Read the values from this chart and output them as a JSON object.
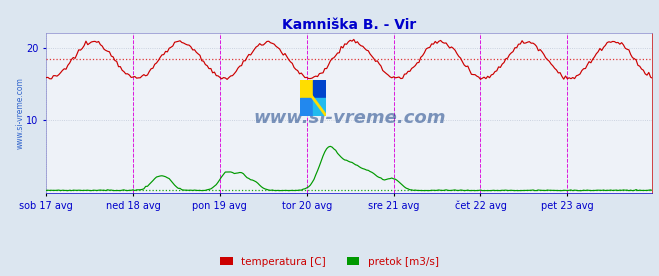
{
  "title": "Kamniška B. - Vir",
  "title_color": "#0000cc",
  "bg_color": "#dce6f0",
  "plot_bg_color": "#eef2f8",
  "grid_color": "#c0c8d8",
  "xlim": [
    0,
    335
  ],
  "ylim": [
    0,
    22
  ],
  "yticks": [
    10,
    20
  ],
  "xtick_labels": [
    "sob 17 avg",
    "ned 18 avg",
    "pon 19 avg",
    "tor 20 avg",
    "sre 21 avg",
    "čet 22 avg",
    "pet 23 avg"
  ],
  "xtick_positions": [
    0,
    48,
    96,
    144,
    192,
    240,
    288
  ],
  "vline_color": "#dd00dd",
  "vline_positions": [
    48,
    96,
    144,
    192,
    240,
    288
  ],
  "temp_color": "#cc0000",
  "flow_color": "#009900",
  "temp_mean": 18.5,
  "flow_mean": 0.5,
  "mean_line_color_temp": "#dd2222",
  "mean_line_color_flow": "#009900",
  "watermark": "www.si-vreme.com",
  "watermark_color": "#1a4488",
  "legend_temp": "temperatura [C]",
  "legend_flow": "pretok [m3/s]",
  "legend_color_temp": "#cc0000",
  "legend_color_flow": "#009900",
  "ylabel_text": "www.si-vreme.com",
  "ylabel_color": "#3366cc",
  "logo_colors": [
    "#ffdd00",
    "#0044cc",
    "#22aaff",
    "#ffdd00"
  ],
  "right_border_color": "#cc0000",
  "bottom_border_color": "#0000cc"
}
